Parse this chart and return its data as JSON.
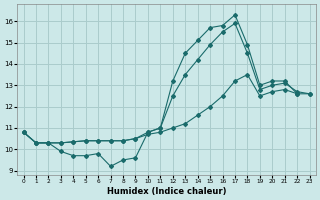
{
  "xlabel": "Humidex (Indice chaleur)",
  "bg_color": "#cce8e8",
  "grid_color": "#aacccc",
  "line_color": "#1a6b6b",
  "xlim": [
    -0.5,
    23.5
  ],
  "ylim": [
    8.8,
    16.8
  ],
  "yticks": [
    9,
    10,
    11,
    12,
    13,
    14,
    15,
    16
  ],
  "xticks": [
    0,
    1,
    2,
    3,
    4,
    5,
    6,
    7,
    8,
    9,
    10,
    11,
    12,
    13,
    14,
    15,
    16,
    17,
    18,
    19,
    20,
    21,
    22,
    23
  ],
  "line1_x": [
    0,
    1,
    2,
    3,
    4,
    5,
    6,
    7,
    8,
    9,
    10,
    11,
    12,
    13,
    14,
    15,
    16,
    17,
    18,
    19,
    20,
    21,
    22
  ],
  "line1_y": [
    10.8,
    10.3,
    10.3,
    9.9,
    9.7,
    9.7,
    9.8,
    9.2,
    9.5,
    9.6,
    10.8,
    11.0,
    13.2,
    14.5,
    15.1,
    15.7,
    15.8,
    16.3,
    14.9,
    13.0,
    13.2,
    13.2,
    12.6
  ],
  "line2_x": [
    0,
    1,
    2,
    3,
    4,
    5,
    6,
    7,
    8,
    9,
    10,
    11,
    12,
    13,
    14,
    15,
    16,
    17,
    18,
    19,
    20,
    21,
    22,
    23
  ],
  "line2_y": [
    10.8,
    10.3,
    10.3,
    10.3,
    10.35,
    10.4,
    10.4,
    10.4,
    10.4,
    10.5,
    10.7,
    10.8,
    11.0,
    11.2,
    11.6,
    12.0,
    12.5,
    13.2,
    13.5,
    12.5,
    12.7,
    12.8,
    12.6,
    12.6
  ],
  "line3_x": [
    0,
    1,
    2,
    3,
    4,
    5,
    6,
    7,
    8,
    9,
    10,
    11,
    12,
    13,
    14,
    15,
    16,
    17,
    18,
    19,
    20,
    21,
    22,
    23
  ],
  "line3_y": [
    10.8,
    10.3,
    10.3,
    10.3,
    10.35,
    10.4,
    10.4,
    10.4,
    10.4,
    10.5,
    10.8,
    11.0,
    12.5,
    13.5,
    14.2,
    14.9,
    15.5,
    15.9,
    14.5,
    12.8,
    13.0,
    13.1,
    12.7,
    12.6
  ]
}
